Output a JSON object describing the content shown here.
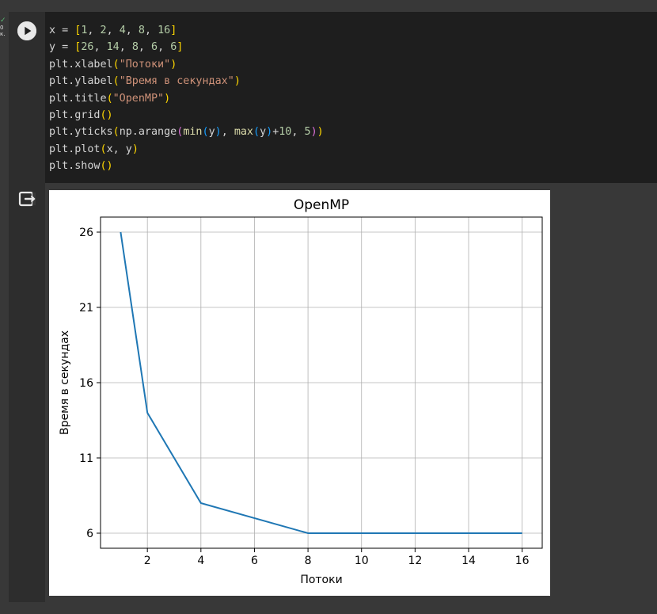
{
  "cell": {
    "status_lines": [
      "✓",
      "0",
      "к."
    ],
    "code_lines": [
      [
        {
          "t": "x = ",
          "c": ""
        },
        {
          "t": "[",
          "c": "p1"
        },
        {
          "t": "1",
          "c": "num"
        },
        {
          "t": ", ",
          "c": ""
        },
        {
          "t": "2",
          "c": "num"
        },
        {
          "t": ", ",
          "c": ""
        },
        {
          "t": "4",
          "c": "num"
        },
        {
          "t": ", ",
          "c": ""
        },
        {
          "t": "8",
          "c": "num"
        },
        {
          "t": ", ",
          "c": ""
        },
        {
          "t": "16",
          "c": "num"
        },
        {
          "t": "]",
          "c": "p1"
        }
      ],
      [
        {
          "t": "y = ",
          "c": ""
        },
        {
          "t": "[",
          "c": "p1"
        },
        {
          "t": "26",
          "c": "num"
        },
        {
          "t": ", ",
          "c": ""
        },
        {
          "t": "14",
          "c": "num"
        },
        {
          "t": ", ",
          "c": ""
        },
        {
          "t": "8",
          "c": "num"
        },
        {
          "t": ", ",
          "c": ""
        },
        {
          "t": "6",
          "c": "num"
        },
        {
          "t": ", ",
          "c": ""
        },
        {
          "t": "6",
          "c": "num"
        },
        {
          "t": "]",
          "c": "p1"
        }
      ],
      [
        {
          "t": "plt.xlabel",
          "c": ""
        },
        {
          "t": "(",
          "c": "p1"
        },
        {
          "t": "\"Потоки\"",
          "c": "str"
        },
        {
          "t": ")",
          "c": "p1"
        }
      ],
      [
        {
          "t": "plt.ylabel",
          "c": ""
        },
        {
          "t": "(",
          "c": "p1"
        },
        {
          "t": "\"Время в секундах\"",
          "c": "str"
        },
        {
          "t": ")",
          "c": "p1"
        }
      ],
      [
        {
          "t": "plt.title",
          "c": ""
        },
        {
          "t": "(",
          "c": "p1"
        },
        {
          "t": "\"OpenMP\"",
          "c": "str"
        },
        {
          "t": ")",
          "c": "p1"
        }
      ],
      [
        {
          "t": "plt.grid",
          "c": ""
        },
        {
          "t": "()",
          "c": "p1"
        }
      ],
      [
        {
          "t": "plt.yticks",
          "c": ""
        },
        {
          "t": "(",
          "c": "p1"
        },
        {
          "t": "np.arange",
          "c": ""
        },
        {
          "t": "(",
          "c": "p2"
        },
        {
          "t": "min",
          "c": "fn"
        },
        {
          "t": "(",
          "c": "p3"
        },
        {
          "t": "y",
          "c": ""
        },
        {
          "t": ")",
          "c": "p3"
        },
        {
          "t": ", ",
          "c": ""
        },
        {
          "t": "max",
          "c": "fn"
        },
        {
          "t": "(",
          "c": "p3"
        },
        {
          "t": "y",
          "c": ""
        },
        {
          "t": ")",
          "c": "p3"
        },
        {
          "t": "+",
          "c": ""
        },
        {
          "t": "10",
          "c": "num"
        },
        {
          "t": ", ",
          "c": ""
        },
        {
          "t": "5",
          "c": "num"
        },
        {
          "t": ")",
          "c": "p2"
        },
        {
          "t": ")",
          "c": "p1"
        }
      ],
      [
        {
          "t": "plt.plot",
          "c": ""
        },
        {
          "t": "(",
          "c": "p1"
        },
        {
          "t": "x, y",
          "c": ""
        },
        {
          "t": ")",
          "c": "p1"
        }
      ],
      [
        {
          "t": "plt.show",
          "c": ""
        },
        {
          "t": "()",
          "c": "p1"
        }
      ]
    ]
  },
  "icons": {
    "run": "play-circle-icon",
    "output": "output-toggle-icon"
  },
  "colors": {
    "line": "#1f77b4",
    "grid": "#b0b0b0",
    "editor_bg": "#1e1e1e"
  },
  "chart_data": {
    "type": "line",
    "title": "OpenMP",
    "xlabel": "Потоки",
    "ylabel": "Время в секундах",
    "x": [
      1,
      2,
      4,
      8,
      16
    ],
    "series": [
      {
        "values": [
          26,
          14,
          8,
          6,
          6
        ]
      }
    ],
    "xticks": [
      2,
      4,
      6,
      8,
      10,
      12,
      14,
      16
    ],
    "yticks": [
      6,
      11,
      16,
      21,
      26
    ],
    "xlim": [
      0.25,
      16.75
    ],
    "ylim": [
      5,
      27
    ],
    "grid": true
  }
}
